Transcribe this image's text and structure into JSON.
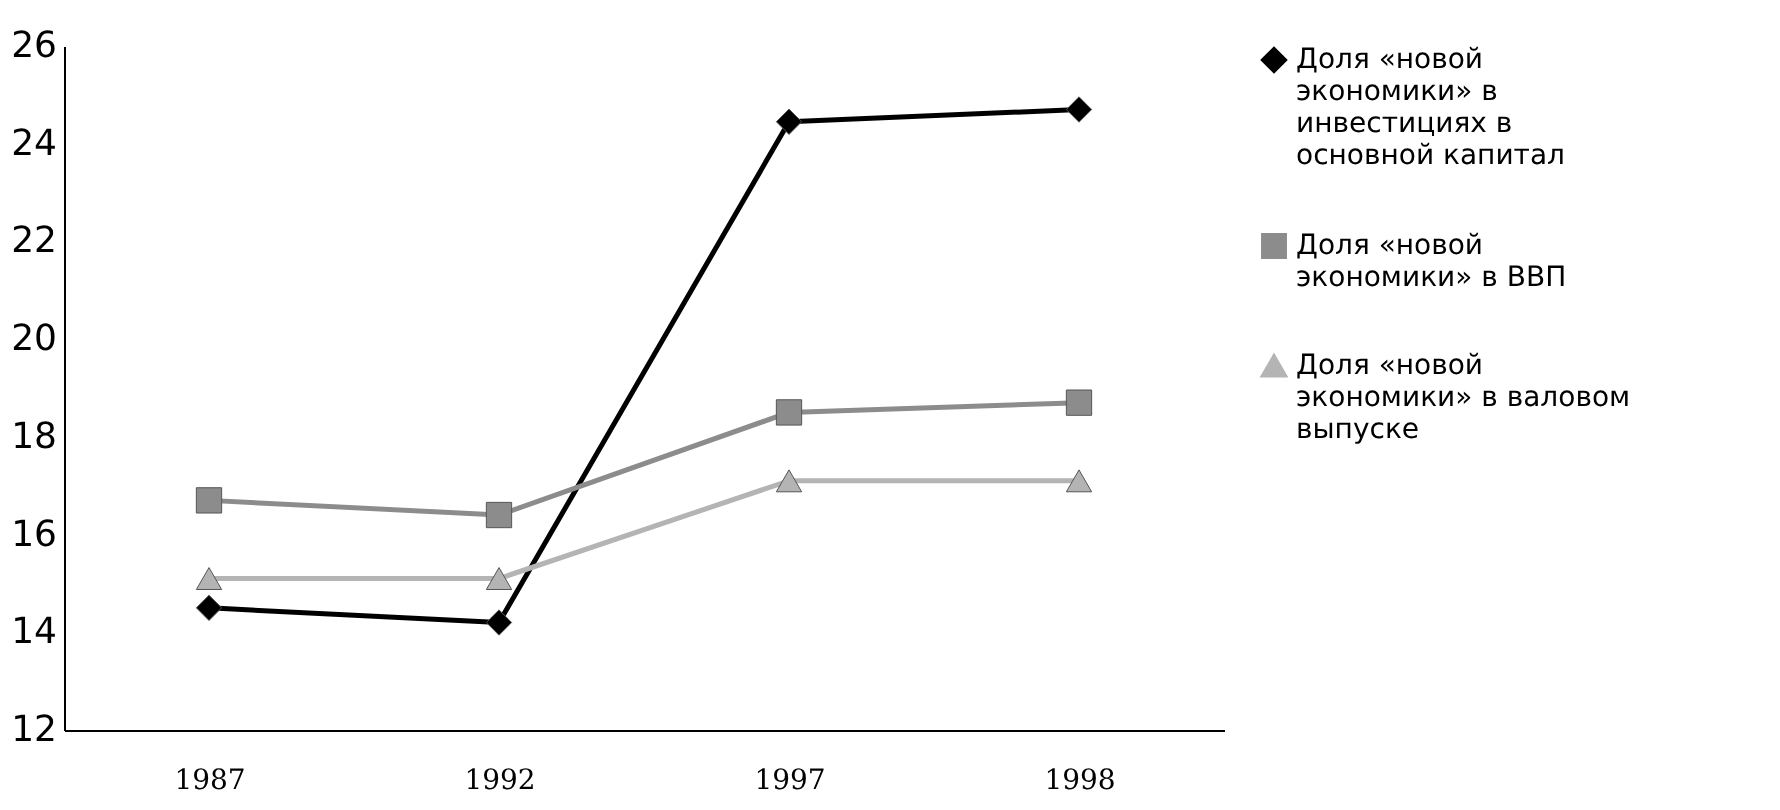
{
  "chart_data": {
    "type": "line",
    "categories": [
      "1987",
      "1992",
      "1997",
      "1998"
    ],
    "series": [
      {
        "name": "Доля «новой экономики» в инвестициях в основной капитал",
        "color": "#000000",
        "marker": "diamond",
        "values": [
          14.5,
          14.2,
          24.45,
          24.7
        ]
      },
      {
        "name": "Доля «новой экономики» в ВВП",
        "color": "#8c8c8c",
        "marker": "square",
        "values": [
          16.7,
          16.4,
          18.5,
          18.7
        ]
      },
      {
        "name": "Доля «новой экономики» в валовом выпуске",
        "color": "#b4b4b4",
        "marker": "triangle",
        "values": [
          15.1,
          15.1,
          17.1,
          17.1
        ]
      }
    ],
    "ylim": [
      12,
      26
    ],
    "yticks": [
      12,
      14,
      16,
      18,
      20,
      22,
      24,
      26
    ],
    "grid": false,
    "legend": "right",
    "line_style": "solid"
  }
}
